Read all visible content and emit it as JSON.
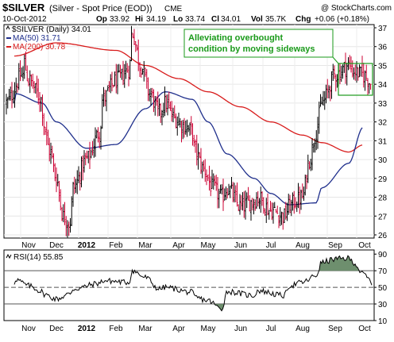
{
  "header": {
    "symbol": "$SILVER",
    "description": "(Silver - Spot Price (EOD))",
    "exchange": "CME",
    "copyright": "@ StockCharts.com",
    "date": "10-Oct-2012",
    "ohlc": {
      "open_label": "Op",
      "open": "33.92",
      "high_label": "Hi",
      "high": "34.19",
      "low_label": "Lo",
      "low": "33.74",
      "close_label": "Cl",
      "close": "34.01",
      "vol_label": "Vol",
      "vol": "35.7K",
      "chg_label": "Chg",
      "chg": "+0.06 (+0.18%)"
    }
  },
  "legend": {
    "price": "$SILVER (Daily) 34.01",
    "ma50": "MA(50) 31.71",
    "ma200": "MA(200) 30.78"
  },
  "annotation": {
    "line1": "Alleviating overbought",
    "line2": "condition by moving sideways"
  },
  "rsi_panel": {
    "label": "RSI(14) 55.85"
  },
  "colors": {
    "up_bar": "#000000",
    "down_bar": "#cc0033",
    "ma50": "#1f2f8c",
    "ma200": "#d81b1b",
    "annotation": "#1a9a1a",
    "rsi_fill": "#6e8f6e"
  },
  "chart_data": [
    {
      "type": "ohlc",
      "title": "$SILVER (Daily) 34.01",
      "x_labels": [
        "Nov",
        "Dec",
        "2012",
        "Feb",
        "Mar",
        "Apr",
        "May",
        "Jun",
        "Jul",
        "Aug",
        "Sep",
        "Oct"
      ],
      "ylim": [
        26,
        37
      ],
      "y_ticks": [
        26,
        27,
        28,
        29,
        30,
        31,
        32,
        33,
        34,
        35,
        36,
        37
      ],
      "y_axis_side": "right",
      "grid": true,
      "series": [
        {
          "name": "$SILVER",
          "close_keypoints": [
            [
              "Oct",
              33.0
            ],
            [
              "Oct",
              34.5
            ],
            [
              "Nov",
              35.3
            ],
            [
              "Nov",
              34.2
            ],
            [
              "Nov",
              33.2
            ],
            [
              "Dec",
              32.0
            ],
            [
              "Dec",
              30.5
            ],
            [
              "Dec",
              29.0
            ],
            [
              "Dec",
              27.0
            ],
            [
              "Dec",
              26.6
            ],
            [
              "2012",
              28.5
            ],
            [
              "2012",
              30.0
            ],
            [
              "2012",
              31.5
            ],
            [
              "Feb",
              33.2
            ],
            [
              "Feb",
              34.2
            ],
            [
              "Feb",
              34.8
            ],
            [
              "Mar",
              36.8
            ],
            [
              "Mar",
              35.0
            ],
            [
              "Mar",
              33.5
            ],
            [
              "Mar",
              32.5
            ],
            [
              "Apr",
              33.0
            ],
            [
              "Apr",
              32.2
            ],
            [
              "Apr",
              31.8
            ],
            [
              "Apr",
              31.5
            ],
            [
              "May",
              30.5
            ],
            [
              "May",
              29.5
            ],
            [
              "May",
              28.5
            ],
            [
              "May",
              28.0
            ],
            [
              "Jun",
              28.5
            ],
            [
              "Jun",
              27.5
            ],
            [
              "Jun",
              27.8
            ],
            [
              "Jul",
              28.0
            ],
            [
              "Jul",
              27.3
            ],
            [
              "Jul",
              27.0
            ],
            [
              "Aug",
              27.5
            ],
            [
              "Aug",
              27.8
            ],
            [
              "Aug",
              28.0
            ],
            [
              "Aug",
              30.0
            ],
            [
              "Aug",
              31.5
            ],
            [
              "Sep",
              33.0
            ],
            [
              "Sep",
              34.5
            ],
            [
              "Sep",
              35.0
            ],
            [
              "Oct",
              34.7
            ],
            [
              "Oct",
              34.5
            ],
            [
              "Oct",
              34.0
            ]
          ]
        },
        {
          "name": "MA(50)",
          "keypoints": [
            [
              "Oct",
              33.0
            ],
            [
              "Nov",
              33.5
            ],
            [
              "Nov",
              33.0
            ],
            [
              "Dec",
              32.0
            ],
            [
              "2012",
              30.6
            ],
            [
              "Feb",
              30.8
            ],
            [
              "Mar",
              32.7
            ],
            [
              "Apr",
              33.6
            ],
            [
              "Apr",
              33.2
            ],
            [
              "May",
              32.0
            ],
            [
              "Jun",
              30.3
            ],
            [
              "Jun",
              29.0
            ],
            [
              "Jul",
              28.2
            ],
            [
              "Aug",
              27.6
            ],
            [
              "Aug",
              27.7
            ],
            [
              "Sep",
              28.5
            ],
            [
              "Sep",
              29.8
            ],
            [
              "Oct",
              31.71
            ]
          ]
        },
        {
          "name": "MA(200)",
          "keypoints": [
            [
              "Oct",
              35.5
            ],
            [
              "Dec",
              36.2
            ],
            [
              "Feb",
              35.8
            ],
            [
              "Mar",
              35.0
            ],
            [
              "Apr",
              34.3
            ],
            [
              "May",
              33.6
            ],
            [
              "Jun",
              32.8
            ],
            [
              "Jul",
              32.0
            ],
            [
              "Aug",
              31.3
            ],
            [
              "Sep",
              30.9
            ],
            [
              "Sep",
              30.4
            ],
            [
              "Oct",
              30.78
            ]
          ]
        }
      ],
      "annotations": [
        {
          "text": "Alleviating overbought condition by moving sideways",
          "box_y_range": [
            33.3,
            35.2
          ],
          "box_period": "Sep-Oct"
        }
      ]
    },
    {
      "type": "line",
      "title": "RSI(14) 55.85",
      "x_labels": [
        "Nov",
        "Dec",
        "2012",
        "Feb",
        "Mar",
        "Apr",
        "May",
        "Jun",
        "Jul",
        "Aug",
        "Sep",
        "Oct"
      ],
      "ylim": [
        10,
        95
      ],
      "y_ticks": [
        10,
        30,
        50,
        70,
        90
      ],
      "reference_lines": [
        30,
        50,
        70
      ],
      "series": [
        {
          "name": "RSI(14)",
          "keypoints": [
            [
              "Oct",
              55
            ],
            [
              "Nov",
              60
            ],
            [
              "Nov",
              52
            ],
            [
              "Nov",
              45
            ],
            [
              "Dec",
              42
            ],
            [
              "Dec",
              36
            ],
            [
              "Dec",
              42
            ],
            [
              "2012",
              48
            ],
            [
              "2012",
              55
            ],
            [
              "Feb",
              58
            ],
            [
              "Feb",
              56
            ],
            [
              "Mar",
              70
            ],
            [
              "Mar",
              62
            ],
            [
              "Mar",
              48
            ],
            [
              "Apr",
              50
            ],
            [
              "Apr",
              44
            ],
            [
              "May",
              38
            ],
            [
              "May",
              34
            ],
            [
              "May",
              24
            ],
            [
              "Jun",
              45
            ],
            [
              "Jun",
              40
            ],
            [
              "Jul",
              46
            ],
            [
              "Jul",
              40
            ],
            [
              "Aug",
              52
            ],
            [
              "Aug",
              56
            ],
            [
              "Aug",
              64
            ],
            [
              "Sep",
              80
            ],
            [
              "Sep",
              84
            ],
            [
              "Sep",
              85
            ],
            [
              "Oct",
              80
            ],
            [
              "Oct",
              66
            ],
            [
              "Oct",
              55.85
            ]
          ]
        }
      ]
    }
  ]
}
